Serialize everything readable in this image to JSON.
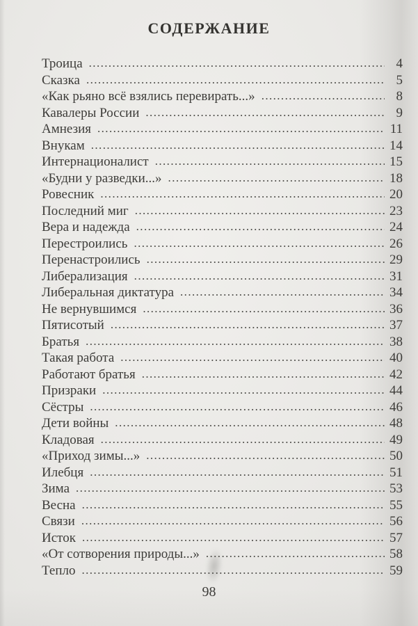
{
  "toc": {
    "title": "СОДЕРЖАНИЕ",
    "footer_page_number": "98",
    "entries": [
      {
        "title": "Троица",
        "page": "4"
      },
      {
        "title": "Сказка",
        "page": "5"
      },
      {
        "title": "«Как рьяно всё взялись перевирать...»",
        "page": "8"
      },
      {
        "title": "Кавалеры России",
        "page": "9"
      },
      {
        "title": "Амнезия",
        "page": "11"
      },
      {
        "title": "Внукам",
        "page": "14"
      },
      {
        "title": "Интернационалист",
        "page": "15"
      },
      {
        "title": "«Будни у разведки...»",
        "page": "18"
      },
      {
        "title": "Ровесник",
        "page": "20"
      },
      {
        "title": "Последний миг",
        "page": "23"
      },
      {
        "title": "Вера и надежда",
        "page": "24"
      },
      {
        "title": "Перестроились",
        "page": "26"
      },
      {
        "title": "Перенастроились",
        "page": "29"
      },
      {
        "title": "Либерализация",
        "page": "31"
      },
      {
        "title": "Либеральная диктатура",
        "page": "34"
      },
      {
        "title": "Не вернувшимся",
        "page": "36"
      },
      {
        "title": "Пятисотый",
        "page": "37"
      },
      {
        "title": "Братья",
        "page": "38"
      },
      {
        "title": "Такая работа",
        "page": "40"
      },
      {
        "title": "Работают братья",
        "page": "42"
      },
      {
        "title": "Призраки",
        "page": "44"
      },
      {
        "title": "Сёстры",
        "page": "46"
      },
      {
        "title": "Дети войны",
        "page": "48"
      },
      {
        "title": "Кладовая",
        "page": "49"
      },
      {
        "title": "«Приход зимы...»",
        "page": "50"
      },
      {
        "title": "Илебця",
        "page": "51"
      },
      {
        "title": "Зима",
        "page": "53"
      },
      {
        "title": "Весна",
        "page": "55"
      },
      {
        "title": "Связи",
        "page": "56"
      },
      {
        "title": "Исток",
        "page": "57"
      },
      {
        "title": "«От сотворения природы...»",
        "page": "58"
      },
      {
        "title": "Тепло",
        "page": "59"
      }
    ]
  }
}
